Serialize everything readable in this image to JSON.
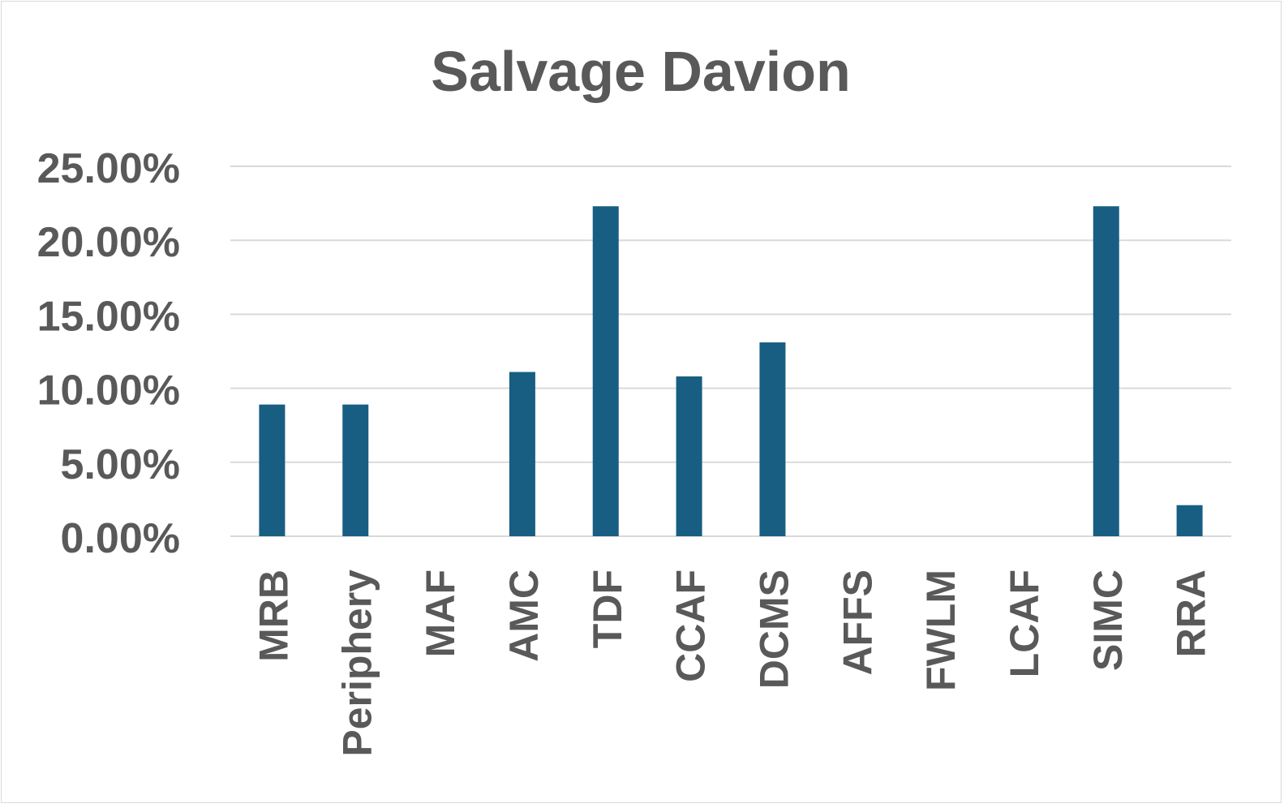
{
  "chart_data": {
    "type": "bar",
    "title": "Salvage Davion",
    "xlabel": "",
    "ylabel": "",
    "categories": [
      "MRB",
      "Periphery",
      "MAF",
      "AMC",
      "TDF",
      "CCAF",
      "DCMS",
      "AFFS",
      "FWLM",
      "LCAF",
      "SIMC",
      "RRA"
    ],
    "values": [
      8.9,
      8.9,
      0,
      11.1,
      22.3,
      10.8,
      13.1,
      0,
      0,
      0,
      22.3,
      2.1
    ],
    "ylim": [
      0,
      25
    ],
    "yticks": [
      "0.00%",
      "5.00%",
      "10.00%",
      "15.00%",
      "20.00%",
      "25.00%"
    ],
    "grid": true,
    "legend": "none",
    "colors": {
      "bar": "#175e82",
      "grid": "#d9d9d9",
      "text": "#595959"
    }
  }
}
